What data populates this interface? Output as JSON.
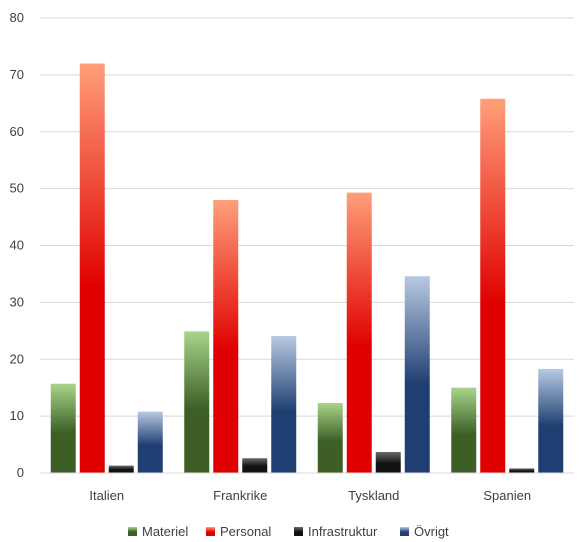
{
  "chart_data": {
    "type": "bar",
    "categories": [
      "Italien",
      "Frankrike",
      "Tyskland",
      "Spanien"
    ],
    "series": [
      {
        "name": "Materiel",
        "values": [
          15.7,
          24.9,
          12.3,
          15.0
        ],
        "color_dark": "#3d5f26",
        "color_light": "#a8d48a"
      },
      {
        "name": "Personal",
        "values": [
          72.0,
          48.0,
          49.3,
          65.8
        ],
        "color_dark": "#e00000",
        "color_light": "#ff9f7a"
      },
      {
        "name": "Infrastruktur",
        "values": [
          1.3,
          2.6,
          3.7,
          0.8
        ],
        "color_dark": "#111111",
        "color_light": "#6a6a6a"
      },
      {
        "name": "Övrigt",
        "values": [
          10.8,
          24.1,
          34.6,
          18.3
        ],
        "color_dark": "#1f3f72",
        "color_light": "#b8c9e2"
      }
    ],
    "ylim": [
      0,
      80
    ],
    "yticks": [
      0,
      10,
      20,
      30,
      40,
      50,
      60,
      70,
      80
    ],
    "grid": true,
    "legend_position": "bottom"
  }
}
